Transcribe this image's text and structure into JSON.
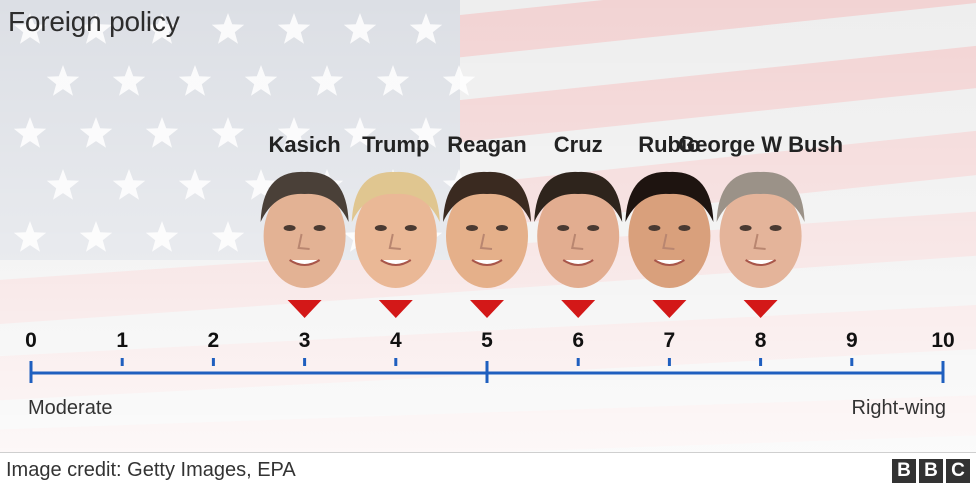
{
  "title": "Foreign policy",
  "credit": "Image credit: Getty Images, EPA",
  "logo_letters": [
    "B",
    "B",
    "C"
  ],
  "scale": {
    "min": 0,
    "max": 10,
    "ticks": [
      "0",
      "1",
      "2",
      "3",
      "4",
      "5",
      "6",
      "7",
      "8",
      "9",
      "10"
    ],
    "left_label": "Moderate",
    "right_label": "Right-wing",
    "axis_color": "#1f5fbf",
    "marker_color": "#d31818"
  },
  "politicians": [
    {
      "name": "Kasich",
      "value": 3,
      "hair": "#4a4038",
      "skin": "#e3b294"
    },
    {
      "name": "Trump",
      "value": 4,
      "hair": "#e0c690",
      "skin": "#eab896"
    },
    {
      "name": "Reagan",
      "value": 5,
      "hair": "#3a2a20",
      "skin": "#e5b08a"
    },
    {
      "name": "Cruz",
      "value": 6,
      "hair": "#2e241c",
      "skin": "#e2ad90"
    },
    {
      "name": "Rubio",
      "value": 7,
      "hair": "#1e1410",
      "skin": "#d9a07c"
    },
    {
      "name": "George W Bush",
      "value": 8,
      "hair": "#9b9288",
      "skin": "#e4b49a"
    }
  ]
}
